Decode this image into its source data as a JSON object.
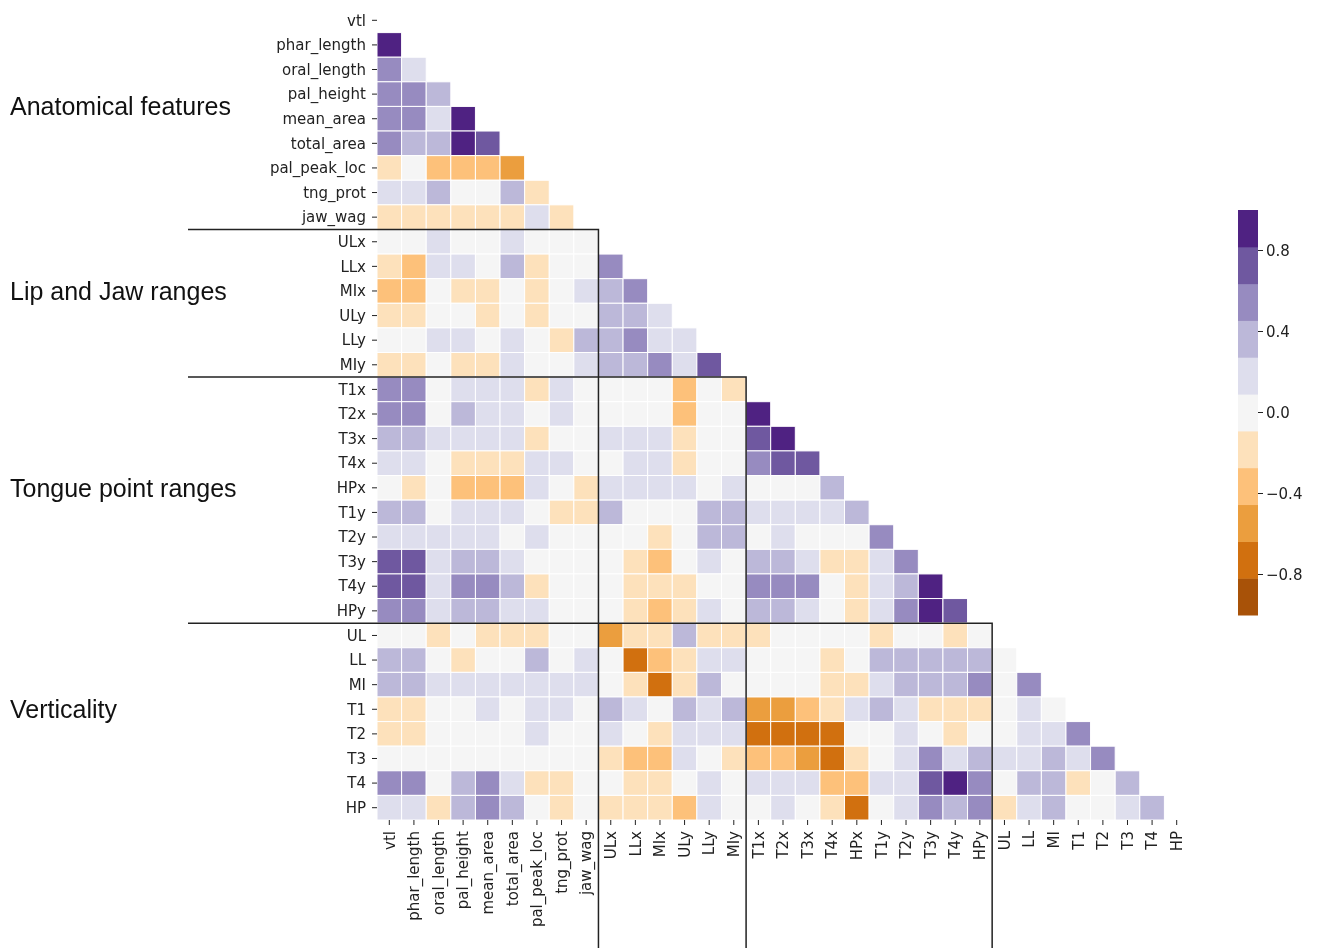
{
  "chart_data": {
    "type": "heatmap",
    "categories": [
      "vtl",
      "phar_length",
      "oral_length",
      "pal_height",
      "mean_area",
      "total_area",
      "pal_peak_loc",
      "tng_prot",
      "jaw_wag",
      "ULx",
      "LLx",
      "MIx",
      "ULy",
      "LLy",
      "MIy",
      "T1x",
      "T2x",
      "T3x",
      "T4x",
      "HPx",
      "T1y",
      "T2y",
      "T3y",
      "T4y",
      "HPy",
      "UL",
      "LL",
      "MI",
      "T1",
      "T2",
      "T3",
      "T4",
      "HP"
    ],
    "y_categories": [
      "vtl",
      "phar_length",
      "oral_length",
      "pal_height",
      "mean_area",
      "total_area",
      "pal_peak_loc",
      "tng_prot",
      "jaw_wag",
      "ULx",
      "LLx",
      "MIx",
      "ULy",
      "LLy",
      "MIy",
      "T1x",
      "T2x",
      "T3x",
      "T4x",
      "HPx",
      "T1y",
      "T2y",
      "T3y",
      "T4y",
      "HPy",
      "UL",
      "LL",
      "MI",
      "T1",
      "T2",
      "T3",
      "T4",
      "HP"
    ],
    "cells": [
      [
        null,
        null,
        null,
        null,
        null,
        null,
        null,
        null,
        null,
        null,
        null,
        null,
        null,
        null,
        null,
        null,
        null,
        null,
        null,
        null,
        null,
        null,
        null,
        null,
        null,
        null,
        null,
        null,
        null,
        null,
        null,
        null,
        null
      ],
      [
        0.9,
        null,
        null,
        null,
        null,
        null,
        null,
        null,
        null,
        null,
        null,
        null,
        null,
        null,
        null,
        null,
        null,
        null,
        null,
        null,
        null,
        null,
        null,
        null,
        null,
        null,
        null,
        null,
        null,
        null,
        null,
        null,
        null
      ],
      [
        0.55,
        0.2,
        null,
        null,
        null,
        null,
        null,
        null,
        null,
        null,
        null,
        null,
        null,
        null,
        null,
        null,
        null,
        null,
        null,
        null,
        null,
        null,
        null,
        null,
        null,
        null,
        null,
        null,
        null,
        null,
        null,
        null,
        null
      ],
      [
        0.55,
        0.55,
        0.35,
        null,
        null,
        null,
        null,
        null,
        null,
        null,
        null,
        null,
        null,
        null,
        null,
        null,
        null,
        null,
        null,
        null,
        null,
        null,
        null,
        null,
        null,
        null,
        null,
        null,
        null,
        null,
        null,
        null,
        null
      ],
      [
        0.55,
        0.55,
        0.2,
        0.9,
        null,
        null,
        null,
        null,
        null,
        null,
        null,
        null,
        null,
        null,
        null,
        null,
        null,
        null,
        null,
        null,
        null,
        null,
        null,
        null,
        null,
        null,
        null,
        null,
        null,
        null,
        null,
        null,
        null
      ],
      [
        0.55,
        0.35,
        0.35,
        0.9,
        0.7,
        null,
        null,
        null,
        null,
        null,
        null,
        null,
        null,
        null,
        null,
        null,
        null,
        null,
        null,
        null,
        null,
        null,
        null,
        null,
        null,
        null,
        null,
        null,
        null,
        null,
        null,
        null,
        null
      ],
      [
        -0.2,
        0,
        -0.35,
        -0.35,
        -0.35,
        -0.55,
        null,
        null,
        null,
        null,
        null,
        null,
        null,
        null,
        null,
        null,
        null,
        null,
        null,
        null,
        null,
        null,
        null,
        null,
        null,
        null,
        null,
        null,
        null,
        null,
        null,
        null,
        null
      ],
      [
        0.2,
        0.2,
        0.35,
        0,
        0,
        0.35,
        -0.2,
        null,
        null,
        null,
        null,
        null,
        null,
        null,
        null,
        null,
        null,
        null,
        null,
        null,
        null,
        null,
        null,
        null,
        null,
        null,
        null,
        null,
        null,
        null,
        null,
        null,
        null
      ],
      [
        -0.2,
        -0.2,
        -0.2,
        -0.2,
        -0.2,
        -0.2,
        0.2,
        -0.2,
        null,
        null,
        null,
        null,
        null,
        null,
        null,
        null,
        null,
        null,
        null,
        null,
        null,
        null,
        null,
        null,
        null,
        null,
        null,
        null,
        null,
        null,
        null,
        null,
        null
      ],
      [
        0,
        0,
        0.2,
        0,
        0,
        0.2,
        0,
        0,
        0,
        null,
        null,
        null,
        null,
        null,
        null,
        null,
        null,
        null,
        null,
        null,
        null,
        null,
        null,
        null,
        null,
        null,
        null,
        null,
        null,
        null,
        null,
        null,
        null
      ],
      [
        -0.2,
        -0.35,
        0.2,
        0.2,
        0,
        0.35,
        -0.2,
        0,
        0,
        0.55,
        null,
        null,
        null,
        null,
        null,
        null,
        null,
        null,
        null,
        null,
        null,
        null,
        null,
        null,
        null,
        null,
        null,
        null,
        null,
        null,
        null,
        null,
        null
      ],
      [
        -0.35,
        -0.35,
        0,
        -0.2,
        -0.2,
        0,
        -0.2,
        0,
        0.2,
        0.35,
        0.55,
        null,
        null,
        null,
        null,
        null,
        null,
        null,
        null,
        null,
        null,
        null,
        null,
        null,
        null,
        null,
        null,
        null,
        null,
        null,
        null,
        null,
        null
      ],
      [
        -0.2,
        -0.2,
        0,
        0,
        -0.2,
        0,
        -0.2,
        0,
        0,
        0.35,
        0.35,
        0.2,
        null,
        null,
        null,
        null,
        null,
        null,
        null,
        null,
        null,
        null,
        null,
        null,
        null,
        null,
        null,
        null,
        null,
        null,
        null,
        null,
        null
      ],
      [
        0,
        0,
        0.2,
        0.2,
        0,
        0.2,
        0,
        -0.2,
        0.35,
        0.35,
        0.55,
        0.2,
        0.2,
        null,
        null,
        null,
        null,
        null,
        null,
        null,
        null,
        null,
        null,
        null,
        null,
        null,
        null,
        null,
        null,
        null,
        null,
        null,
        null
      ],
      [
        -0.2,
        -0.2,
        0,
        -0.2,
        -0.2,
        0.2,
        0,
        0,
        0.2,
        0.35,
        0.35,
        0.55,
        0.2,
        0.7,
        null,
        null,
        null,
        null,
        null,
        null,
        null,
        null,
        null,
        null,
        null,
        null,
        null,
        null,
        null,
        null,
        null,
        null,
        null
      ],
      [
        0.55,
        0.55,
        0,
        0.2,
        0.2,
        0.2,
        -0.2,
        0.2,
        0,
        0,
        0,
        0,
        -0.35,
        0,
        -0.2,
        null,
        null,
        null,
        null,
        null,
        null,
        null,
        null,
        null,
        null,
        null,
        null,
        null,
        null,
        null,
        null,
        null,
        null
      ],
      [
        0.55,
        0.55,
        0,
        0.35,
        0.2,
        0.2,
        0,
        0.2,
        0,
        0,
        0,
        0,
        -0.35,
        0,
        0,
        0.9,
        null,
        null,
        null,
        null,
        null,
        null,
        null,
        null,
        null,
        null,
        null,
        null,
        null,
        null,
        null,
        null,
        null
      ],
      [
        0.35,
        0.35,
        0.2,
        0.2,
        0.2,
        0.2,
        -0.2,
        0,
        0,
        0.2,
        0.2,
        0.2,
        -0.2,
        0,
        0,
        0.7,
        0.9,
        null,
        null,
        null,
        null,
        null,
        null,
        null,
        null,
        null,
        null,
        null,
        null,
        null,
        null,
        null,
        null
      ],
      [
        0.2,
        0.2,
        0,
        -0.2,
        -0.2,
        -0.2,
        0.2,
        0.2,
        0,
        0,
        0.2,
        0.2,
        -0.2,
        0,
        0,
        0.55,
        0.7,
        0.7,
        null,
        null,
        null,
        null,
        null,
        null,
        null,
        null,
        null,
        null,
        null,
        null,
        null,
        null,
        null
      ],
      [
        0,
        -0.2,
        0,
        -0.35,
        -0.35,
        -0.35,
        0.2,
        0,
        -0.2,
        0.2,
        0.2,
        0.2,
        0.2,
        0,
        0.2,
        0,
        0,
        0,
        0.35,
        null,
        null,
        null,
        null,
        null,
        null,
        null,
        null,
        null,
        null,
        null,
        null,
        null,
        null
      ],
      [
        0.35,
        0.35,
        0,
        0.2,
        0.2,
        0.2,
        0,
        -0.2,
        -0.2,
        0.35,
        0,
        0,
        0,
        0.35,
        0.35,
        0.2,
        0.2,
        0.2,
        0.2,
        0.35,
        null,
        null,
        null,
        null,
        null,
        null,
        null,
        null,
        null,
        null,
        null,
        null,
        null
      ],
      [
        0.2,
        0.2,
        0.2,
        0.2,
        0.2,
        0,
        0.2,
        0,
        0,
        0,
        0,
        -0.2,
        0,
        0.35,
        0.35,
        0,
        0.2,
        0,
        0,
        0,
        0.55,
        null,
        null,
        null,
        null,
        null,
        null,
        null,
        null,
        null,
        null,
        null,
        null
      ],
      [
        0.7,
        0.7,
        0.2,
        0.35,
        0.35,
        0.2,
        0,
        0,
        0,
        0,
        -0.2,
        -0.35,
        0,
        0.2,
        0,
        0.35,
        0.35,
        0.2,
        -0.2,
        -0.2,
        0.2,
        0.55,
        null,
        null,
        null,
        null,
        null,
        null,
        null,
        null,
        null,
        null,
        null
      ],
      [
        0.7,
        0.7,
        0.2,
        0.55,
        0.55,
        0.35,
        -0.2,
        0,
        0,
        0,
        -0.2,
        -0.2,
        -0.2,
        0,
        0,
        0.55,
        0.55,
        0.55,
        0,
        -0.2,
        0.2,
        0.35,
        0.9,
        null,
        null,
        null,
        null,
        null,
        null,
        null,
        null,
        null,
        null
      ],
      [
        0.55,
        0.55,
        0.2,
        0.35,
        0.35,
        0.2,
        0.2,
        0,
        0,
        0,
        -0.2,
        -0.35,
        -0.2,
        0.2,
        0,
        0.35,
        0.35,
        0.2,
        0,
        -0.2,
        0.2,
        0.55,
        0.9,
        0.7,
        null,
        null,
        null,
        null,
        null,
        null,
        null,
        null,
        null
      ],
      [
        0,
        0,
        -0.2,
        0,
        -0.2,
        -0.2,
        -0.2,
        0,
        0,
        -0.55,
        -0.2,
        -0.2,
        0.35,
        -0.2,
        -0.2,
        -0.2,
        0,
        0,
        0,
        0,
        -0.2,
        0,
        0,
        -0.2,
        0,
        null,
        null,
        null,
        null,
        null,
        null,
        null,
        null
      ],
      [
        0.35,
        0.35,
        0,
        -0.2,
        0,
        0,
        0.35,
        0,
        0.2,
        0,
        -0.7,
        -0.35,
        -0.2,
        0.2,
        0.2,
        0,
        0,
        0,
        -0.2,
        0,
        0.35,
        0.35,
        0.35,
        0.35,
        0.35,
        0,
        null,
        null,
        null,
        null,
        null,
        null,
        null
      ],
      [
        0.35,
        0.35,
        0.2,
        0.2,
        0.2,
        0.2,
        0.2,
        0.2,
        0.2,
        0,
        -0.2,
        -0.7,
        -0.2,
        0.35,
        0,
        0,
        0,
        0,
        -0.2,
        -0.2,
        0.2,
        0.35,
        0.35,
        0.35,
        0.55,
        0,
        0.55,
        null,
        null,
        null,
        null,
        null,
        null
      ],
      [
        -0.2,
        -0.2,
        0,
        0,
        0.2,
        0,
        0.2,
        0.2,
        0,
        0.35,
        0.2,
        0,
        0.35,
        0.2,
        0.35,
        -0.55,
        -0.55,
        -0.35,
        -0.2,
        0.2,
        0.35,
        0.2,
        -0.2,
        -0.2,
        -0.2,
        0,
        0.2,
        0,
        null,
        null,
        null,
        null,
        null
      ],
      [
        -0.2,
        -0.2,
        0,
        0,
        0,
        0,
        0.2,
        0,
        0,
        0.2,
        0,
        -0.2,
        0.2,
        0.2,
        0.2,
        -0.7,
        -0.7,
        -0.7,
        -0.7,
        0,
        0,
        0.2,
        0,
        -0.2,
        0,
        0,
        0.2,
        0.2,
        0.55,
        null,
        null,
        null,
        null
      ],
      [
        0,
        0,
        0,
        0,
        0,
        0,
        0,
        0,
        0,
        -0.2,
        -0.35,
        -0.35,
        0.2,
        0,
        -0.2,
        -0.35,
        -0.35,
        -0.55,
        -0.7,
        -0.2,
        0,
        0.2,
        0.55,
        0.2,
        0.35,
        0.2,
        0.2,
        0.35,
        0.2,
        0.55,
        null,
        null,
        null
      ],
      [
        0.55,
        0.55,
        0,
        0.35,
        0.55,
        0.2,
        -0.2,
        -0.2,
        0,
        0,
        -0.2,
        -0.2,
        0,
        0.2,
        0,
        0.2,
        0.2,
        0.2,
        -0.35,
        -0.35,
        0.2,
        0.2,
        0.7,
        0.9,
        0.55,
        0,
        0.35,
        0.35,
        -0.2,
        0,
        0.35,
        null,
        null
      ],
      [
        0.2,
        0.2,
        -0.2,
        0.35,
        0.55,
        0.35,
        0,
        -0.2,
        0,
        -0.2,
        -0.2,
        -0.2,
        -0.35,
        0.2,
        0,
        0,
        0.2,
        0,
        -0.2,
        -0.7,
        0,
        0.2,
        0.55,
        0.35,
        0.55,
        -0.2,
        0.2,
        0.35,
        0,
        0,
        0.2,
        0.35,
        null
      ]
    ],
    "clim": [
      -1,
      1
    ],
    "cticks": [
      {
        "value": -0.8,
        "label": "−0.8"
      },
      {
        "value": -0.4,
        "label": "−0.4"
      },
      {
        "value": 0,
        "label": "0.0"
      },
      {
        "value": 0.4,
        "label": "0.4"
      },
      {
        "value": 0.8,
        "label": "0.8"
      }
    ],
    "annotations": [
      "Anatomical features",
      "Lip and Jaw ranges",
      "Tongue point ranges",
      "Verticality"
    ]
  }
}
